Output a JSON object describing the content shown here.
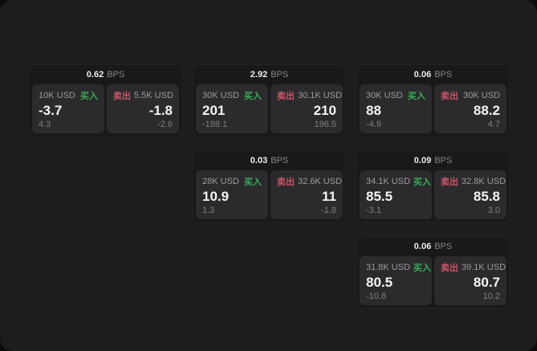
{
  "labels": {
    "bps_unit": "BPS",
    "buy": "买入",
    "sell": "卖出"
  },
  "colors": {
    "buy_green": "#3cab57",
    "sell_red": "#cc5566",
    "screen_background": "#1d1d1f",
    "card_background": "#19191b",
    "panel_background": "#2b2b2e"
  },
  "cards": [
    {
      "bps": "0.62",
      "buy": {
        "size": "10K USD",
        "price": "-3.7",
        "sub": "4.3"
      },
      "sell": {
        "size": "5.5K USD",
        "price": "-1.8",
        "sub": "-2.6"
      }
    },
    {
      "bps": "2.92",
      "buy": {
        "size": "30K USD",
        "price": "201",
        "sub": "-188.1"
      },
      "sell": {
        "size": "30.1K USD",
        "price": "210",
        "sub": "196.5"
      }
    },
    {
      "bps": "0.06",
      "buy": {
        "size": "30K USD",
        "price": "88",
        "sub": "-4.9"
      },
      "sell": {
        "size": "30K USD",
        "price": "88.2",
        "sub": "4.7"
      }
    },
    {
      "bps": "0.03",
      "buy": {
        "size": "28K USD",
        "price": "10.9",
        "sub": "1.3"
      },
      "sell": {
        "size": "32.6K USD",
        "price": "11",
        "sub": "-1.8"
      }
    },
    {
      "bps": "0.09",
      "buy": {
        "size": "34.1K USD",
        "price": "85.5",
        "sub": "-3.1"
      },
      "sell": {
        "size": "32.8K USD",
        "price": "85.8",
        "sub": "3.0"
      }
    },
    {
      "bps": "0.06",
      "buy": {
        "size": "31.8K USD",
        "price": "80.5",
        "sub": "-10.8"
      },
      "sell": {
        "size": "39.1K USD",
        "price": "80.7",
        "sub": "10.2"
      }
    }
  ]
}
